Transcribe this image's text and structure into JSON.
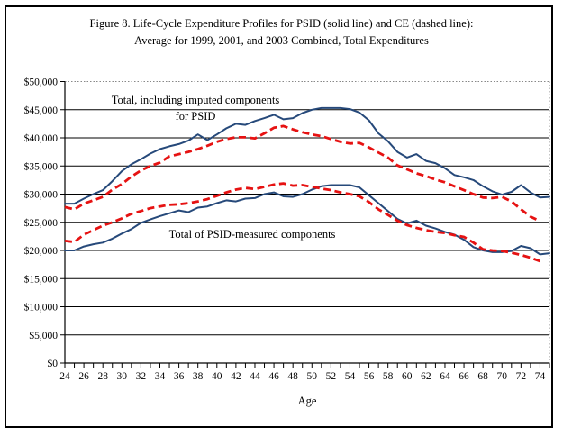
{
  "figure": {
    "title_line1": "Figure 8. Life-Cycle Expenditure Profiles for PSID (solid line) and CE (dashed line):",
    "title_line2": "Average for 1999, 2001, and 2003 Combined, Total Expenditures"
  },
  "annotations": {
    "imputed_line1": "Total, including imputed components",
    "imputed_line2": "for PSID",
    "measured": "Total of PSID-measured components"
  },
  "chart_data": {
    "type": "line",
    "title": "Figure 8. Life-Cycle Expenditure Profiles for PSID (solid line) and CE (dashed line): Average for 1999, 2001, and 2003 Combined, Total Expenditures",
    "xlabel": "Age",
    "ylabel": "",
    "x_start_age": 24,
    "x_end_age": 75,
    "x_tick_labels": [
      "24",
      "26",
      "28",
      "30",
      "32",
      "34",
      "36",
      "38",
      "40",
      "42",
      "44",
      "46",
      "48",
      "50",
      "52",
      "54",
      "56",
      "58",
      "60",
      "62",
      "64",
      "66",
      "68",
      "70",
      "72",
      "74"
    ],
    "x_minor_tick_every": 1,
    "ylim": [
      0,
      50000
    ],
    "y_tick_step": 5000,
    "y_tick_labels": [
      "$0",
      "$5,000",
      "$10,000",
      "$15,000",
      "$20,000",
      "$25,000",
      "$30,000",
      "$35,000",
      "$40,000",
      "$45,000",
      "$50,000"
    ],
    "grid": "horizontal solid black every $5,000; top and right plot edges dotted gray",
    "legend_position": "none (in-plot text annotations)",
    "colors": {
      "psid": "#26497a",
      "ce": "#e61212"
    },
    "series": [
      {
        "name": "PSID total, including imputed components",
        "line": "solid",
        "color_key": "psid",
        "x_start": 24,
        "values": [
          28300,
          28300,
          29200,
          30000,
          30700,
          32300,
          34100,
          35300,
          36200,
          37200,
          38000,
          38500,
          38900,
          39500,
          40600,
          39600,
          40600,
          41700,
          42500,
          42300,
          43000,
          43500,
          44100,
          43300,
          43500,
          44400,
          45000,
          45300,
          45300,
          45300,
          45100,
          44500,
          43100,
          40800,
          39400,
          37500,
          36500,
          37100,
          35900,
          35500,
          34600,
          33400,
          33000,
          32500,
          31400,
          30500,
          29900,
          30400,
          31600,
          30300,
          29400,
          29500
        ]
      },
      {
        "name": "CE total (dashed)",
        "line": "dashed",
        "color_key": "ce",
        "x_start": 24,
        "values": [
          27700,
          27300,
          28300,
          28900,
          29500,
          30800,
          31800,
          33100,
          34200,
          35000,
          35600,
          36700,
          37100,
          37500,
          38000,
          38600,
          39300,
          39800,
          40100,
          40100,
          39900,
          40800,
          41800,
          42100,
          41500,
          41000,
          40600,
          40300,
          39800,
          39300,
          39000,
          39100,
          38300,
          37400,
          36500,
          35100,
          34400,
          33700,
          33200,
          32600,
          32100,
          31400,
          30700,
          30000,
          29400,
          29300,
          29500,
          28700,
          27300,
          26000,
          25200
        ]
      },
      {
        "name": "Total of PSID-measured components",
        "line": "solid",
        "color_key": "psid",
        "x_start": 24,
        "values": [
          20000,
          20000,
          20700,
          21100,
          21400,
          22100,
          23000,
          23800,
          24900,
          25500,
          26100,
          26600,
          27100,
          26800,
          27600,
          27800,
          28400,
          28900,
          28700,
          29200,
          29300,
          30000,
          30300,
          29600,
          29500,
          30000,
          30800,
          31400,
          31600,
          31600,
          31600,
          31200,
          29800,
          28400,
          27000,
          25600,
          24800,
          25300,
          24400,
          23900,
          23300,
          22800,
          21900,
          20600,
          20000,
          19700,
          19700,
          19900,
          20800,
          20400,
          19300,
          19500
        ]
      },
      {
        "name": "CE measured components (dashed)",
        "line": "dashed",
        "color_key": "ce",
        "x_start": 24,
        "values": [
          21700,
          21500,
          22800,
          23600,
          24400,
          25000,
          25700,
          26500,
          27000,
          27500,
          27800,
          28100,
          28200,
          28400,
          28700,
          29100,
          29700,
          30300,
          30800,
          31100,
          30900,
          31300,
          31700,
          31900,
          31500,
          31600,
          31300,
          31000,
          30700,
          30300,
          30000,
          29600,
          28600,
          27300,
          26300,
          25300,
          24500,
          24000,
          23600,
          23300,
          23100,
          22700,
          22400,
          21400,
          20200,
          20000,
          19900,
          19600,
          19200,
          18700,
          18100
        ]
      }
    ]
  }
}
